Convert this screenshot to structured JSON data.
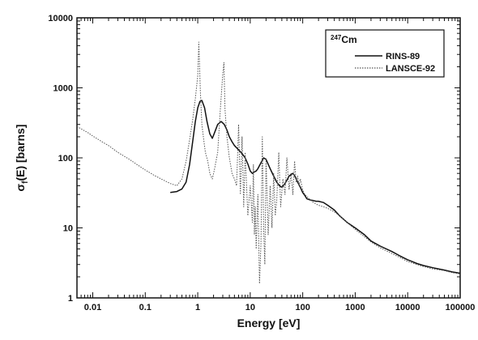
{
  "chart_data": {
    "type": "line",
    "title": "",
    "xlabel": "Energy [eV]",
    "ylabel": "σf(E) [barns]",
    "ylabel_main": "σ",
    "ylabel_sub": "f",
    "ylabel_rest": "(E) [barns]",
    "xscale": "log",
    "yscale": "log",
    "xlim": [
      0.005,
      100000
    ],
    "ylim": [
      1,
      10000
    ],
    "grid": false,
    "legend_position": "top-right",
    "legend_title": "247Cm",
    "legend_title_sup": "247",
    "legend_title_main": "Cm",
    "x_tick_labels": [
      "0.01",
      "0.1",
      "1",
      "10",
      "100",
      "1000",
      "10000",
      "100000"
    ],
    "x_tick_values": [
      0.01,
      0.1,
      1,
      10,
      100,
      1000,
      10000,
      100000
    ],
    "y_tick_labels": [
      "1",
      "10",
      "100",
      "1000",
      "10000"
    ],
    "y_tick_values": [
      1,
      10,
      100,
      1000,
      10000
    ],
    "series": [
      {
        "name": "RINS-89",
        "style": "solid",
        "color": "#111111",
        "x": [
          0.3,
          0.4,
          0.5,
          0.6,
          0.7,
          0.8,
          0.9,
          1.0,
          1.1,
          1.2,
          1.35,
          1.5,
          1.7,
          1.9,
          2.1,
          2.4,
          2.8,
          3.2,
          3.6,
          4.0,
          4.5,
          5.0,
          6.0,
          7.0,
          8.0,
          9.0,
          10,
          11,
          12,
          13,
          14,
          16,
          18,
          20,
          24,
          28,
          32,
          36,
          40,
          45,
          50,
          55,
          60,
          65,
          70,
          75,
          80,
          90,
          100,
          110,
          120,
          140,
          160,
          180,
          200,
          250,
          300,
          400,
          500,
          700,
          1000,
          1500,
          2000,
          3000,
          5000,
          7000,
          10000,
          15000,
          20000,
          30000,
          50000,
          70000,
          100000
        ],
        "y": [
          32,
          33,
          36,
          45,
          80,
          170,
          330,
          520,
          640,
          660,
          520,
          330,
          220,
          190,
          230,
          300,
          330,
          300,
          250,
          200,
          170,
          150,
          130,
          115,
          100,
          82,
          65,
          60,
          63,
          65,
          70,
          85,
          100,
          95,
          70,
          55,
          45,
          40,
          38,
          42,
          48,
          55,
          58,
          60,
          56,
          50,
          45,
          38,
          32,
          29,
          26,
          25,
          24.5,
          24,
          24,
          23,
          21,
          18,
          15,
          12,
          10,
          8,
          6.5,
          5.5,
          4.6,
          4,
          3.5,
          3.1,
          2.9,
          2.7,
          2.5,
          2.35,
          2.25
        ]
      },
      {
        "name": "LANSCE-92",
        "style": "dotted",
        "color": "#555555",
        "x": [
          0.005,
          0.006,
          0.008,
          0.01,
          0.015,
          0.02,
          0.03,
          0.05,
          0.07,
          0.1,
          0.15,
          0.2,
          0.3,
          0.4,
          0.5,
          0.6,
          0.7,
          0.8,
          0.9,
          1.0,
          1.05,
          1.12,
          1.2,
          1.3,
          1.4,
          1.55,
          1.7,
          1.9,
          2.1,
          2.4,
          2.7,
          3.0,
          3.15,
          3.3,
          3.6,
          4.0,
          4.5,
          5.0,
          5.5,
          6.0,
          6.5,
          7.0,
          7.5,
          8.0,
          9.0,
          10,
          11,
          11.5,
          12,
          12.5,
          13,
          14,
          15,
          16,
          17,
          18,
          19,
          20,
          22,
          24,
          26,
          28,
          30,
          32,
          35,
          38,
          42,
          46,
          50,
          55,
          60,
          65,
          70,
          75,
          80,
          85,
          90,
          100,
          110,
          120,
          140,
          160,
          180,
          200,
          250,
          300,
          400,
          500,
          700,
          1000,
          1500,
          2000,
          3000,
          5000,
          7000,
          10000,
          15000,
          20000,
          30000,
          50000,
          70000,
          100000
        ],
        "y": [
          280,
          260,
          230,
          205,
          170,
          150,
          120,
          95,
          80,
          67,
          56,
          50,
          43,
          40,
          50,
          90,
          180,
          350,
          700,
          1500,
          4500,
          900,
          300,
          180,
          120,
          90,
          60,
          50,
          70,
          120,
          500,
          1600,
          2300,
          500,
          200,
          100,
          60,
          50,
          40,
          300,
          30,
          200,
          20,
          120,
          15,
          40,
          12,
          80,
          8,
          20,
          5,
          30,
          1.6,
          6,
          200,
          10,
          3,
          100,
          8,
          40,
          10,
          60,
          15,
          25,
          120,
          20,
          50,
          30,
          100,
          35,
          60,
          30,
          90,
          45,
          55,
          40,
          50,
          35,
          30,
          28,
          25,
          23,
          22,
          21,
          20,
          19,
          17,
          15,
          12,
          9.5,
          7.5,
          6.3,
          5.2,
          4.3,
          3.8,
          3.3,
          3.0,
          2.8,
          2.6,
          2.45,
          2.3,
          2.2
        ]
      }
    ]
  }
}
